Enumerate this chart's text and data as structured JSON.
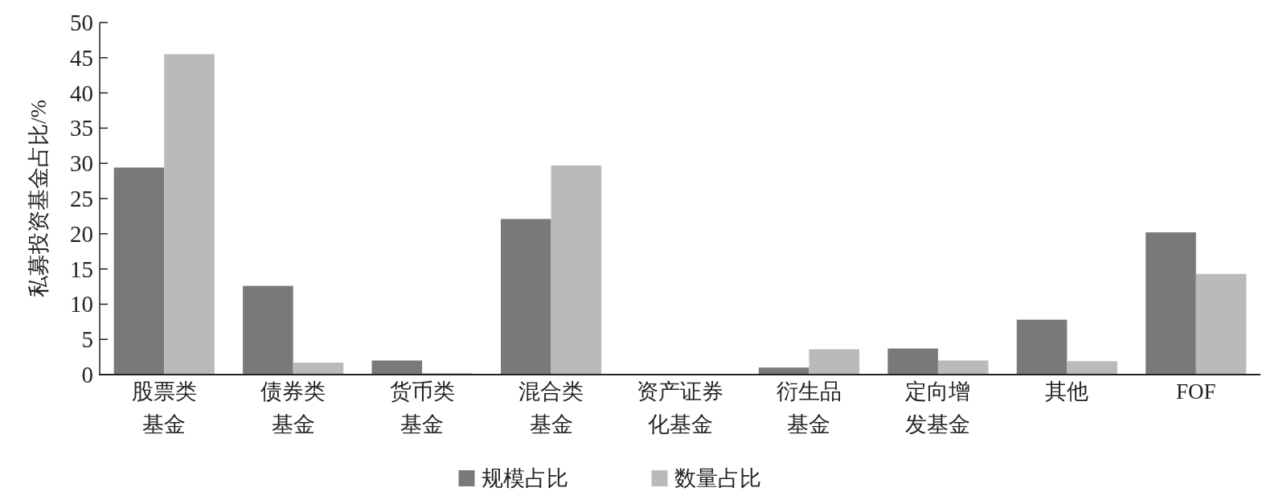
{
  "chart_data": {
    "type": "bar",
    "ylabel": "私募投资基金占比/%",
    "categories": [
      "股票类基金",
      "债券类基金",
      "货币类基金",
      "混合类基金",
      "资产证券化基金",
      "衍生品基金",
      "定向增发基金",
      "其他",
      "FOF"
    ],
    "series": [
      {
        "name": "规模占比",
        "color": "#7a7879",
        "values": [
          29.4,
          12.6,
          2.0,
          22.1,
          0,
          1.0,
          3.7,
          7.8,
          20.2
        ]
      },
      {
        "name": "数量占比",
        "color": "#bbbabb",
        "values": [
          45.5,
          1.7,
          0.2,
          29.7,
          0,
          3.6,
          2.0,
          1.9,
          14.3
        ]
      }
    ],
    "ylim": [
      0,
      50
    ],
    "yticks": [
      0,
      5,
      10,
      15,
      20,
      25,
      30,
      35,
      40,
      45,
      50
    ],
    "grid": false,
    "legend": "bottom"
  }
}
